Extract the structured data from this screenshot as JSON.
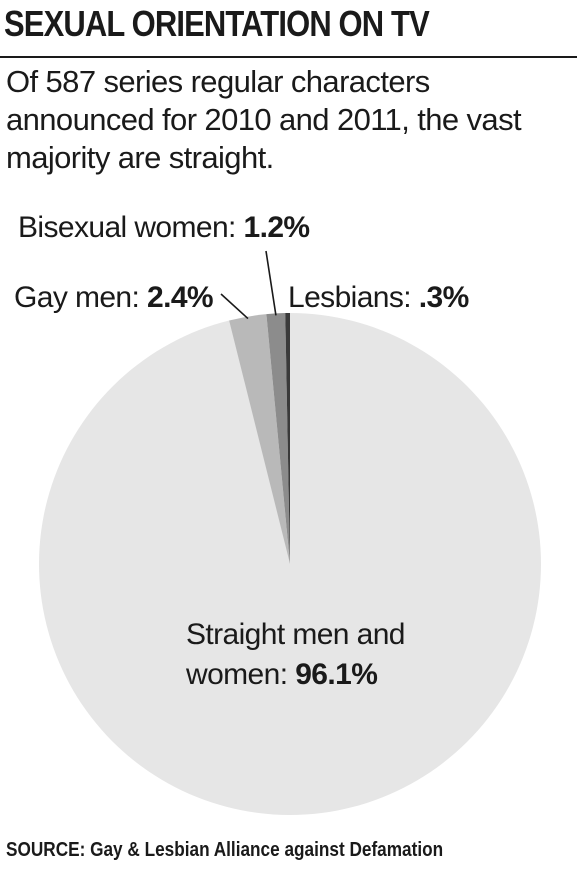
{
  "headline": "SEXUAL ORIENTATION ON TV",
  "subtitle": "Of 587 series regular characters announced for 2010 and 2011, the vast majority are straight.",
  "source": "SOURCE: Gay & Lesbian Alliance against Defamation",
  "chart_data": {
    "type": "pie",
    "unit": "%",
    "slices": [
      {
        "key": "straight",
        "label": "Straight men and women",
        "label_line1": "Straight men and",
        "label_line2": "women:",
        "value_text": "96.1%",
        "value": 96.1,
        "color": "#e6e6e6"
      },
      {
        "key": "gay",
        "label": "Gay men",
        "label_prefix": "Gay men:",
        "value_text": "2.4%",
        "value": 2.4,
        "color": "#b9b9b9"
      },
      {
        "key": "bisexual",
        "label": "Bisexual women",
        "label_prefix": "Bisexual women:",
        "value_text": "1.2%",
        "value": 1.2,
        "color": "#8c8c8c"
      },
      {
        "key": "lesbians",
        "label": "Lesbians",
        "label_prefix": "Lesbians:",
        "value_text": ".3%",
        "value": 0.3,
        "color": "#3a3a3a"
      }
    ]
  }
}
